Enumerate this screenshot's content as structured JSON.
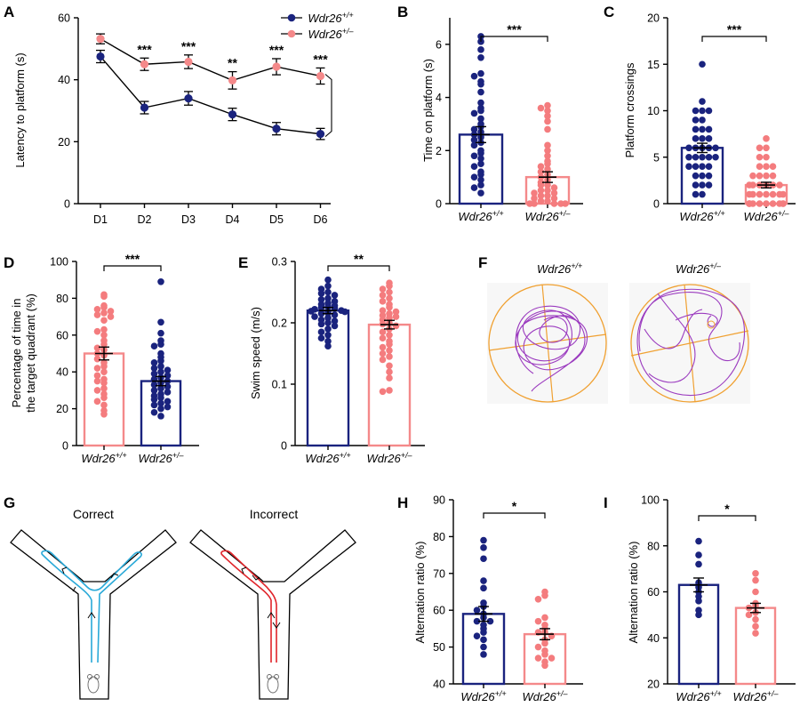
{
  "colors": {
    "wt": "#1a237e",
    "het": "#f4898a",
    "het_dot": "#f47c7e",
    "arena": "#f0a030",
    "path": "#9b3bbf",
    "correct_path": "#29a9d8",
    "incorrect_path": "#e0242a",
    "incorrect_text": "#e0242a"
  },
  "panels": {
    "A": {
      "label": "A",
      "chart_data": {
        "type": "line",
        "ylabel": "Latency to platform (s)",
        "xlabel": "",
        "categories": [
          "D1",
          "D2",
          "D3",
          "D4",
          "D5",
          "D6"
        ],
        "ylim": [
          0,
          60
        ],
        "yticks": [
          0,
          20,
          40,
          60
        ],
        "series": [
          {
            "name": "Wdr26+/+",
            "name_base": "Wdr26",
            "name_sup": "+/+",
            "values": [
              47.5,
              31,
              34,
              28.8,
              24.2,
              22.5
            ],
            "err": [
              2,
              2,
              2.2,
              2,
              2,
              1.8
            ]
          },
          {
            "name": "Wdr26+/–",
            "name_base": "Wdr26",
            "name_sup": "+/–",
            "values": [
              53.2,
              45,
              45.8,
              39.8,
              44.2,
              41.2
            ],
            "err": [
              1.6,
              2,
              2.2,
              2.8,
              2.6,
              2.6
            ]
          }
        ],
        "annotations": [
          "",
          "***",
          "***",
          "**",
          "***",
          "***"
        ],
        "bracket_annotation": "***",
        "legend": "top-right"
      }
    },
    "B": {
      "label": "B",
      "chart_data": {
        "type": "bar",
        "ylabel": "Time on platform (s)",
        "ylim": [
          0,
          7
        ],
        "yticks": [
          0,
          2,
          4,
          6
        ],
        "categories": [
          "Wdr26+/+",
          "Wdr26+/–"
        ],
        "cat_base": [
          "Wdr26",
          "Wdr26"
        ],
        "cat_sup": [
          "+/+",
          "+/–"
        ],
        "values": [
          2.6,
          1.0
        ],
        "err": [
          0.3,
          0.2
        ],
        "significance": "***",
        "points": [
          [
            6.3,
            6.1,
            5.8,
            5.5,
            4.9,
            4.8,
            4.6,
            4.5,
            4.2,
            3.8,
            3.6,
            3.5,
            3.4,
            3.2,
            3.0,
            2.9,
            2.8,
            2.7,
            2.6,
            2.5,
            2.4,
            2.3,
            2.2,
            2.0,
            1.9,
            1.8,
            1.7,
            1.5,
            1.4,
            1.2,
            1.1,
            1.0,
            0.9,
            0.7,
            0.6,
            0.4
          ],
          [
            3.7,
            3.6,
            3.5,
            3.3,
            3.1,
            2.8,
            2.2,
            2.0,
            1.8,
            1.6,
            1.5,
            1.4,
            1.3,
            1.2,
            1.1,
            1.0,
            0.9,
            0.8,
            0.7,
            0.7,
            0.6,
            0.5,
            0.5,
            0.4,
            0.4,
            0.3,
            0.3,
            0.2,
            0.2,
            0.1,
            0.1,
            0,
            0,
            0,
            0,
            0
          ]
        ]
      }
    },
    "C": {
      "label": "C",
      "chart_data": {
        "type": "bar",
        "ylabel": "Platform crossings",
        "ylim": [
          0,
          20
        ],
        "yticks": [
          0,
          5,
          10,
          15,
          20
        ],
        "categories": [
          "Wdr26+/+",
          "Wdr26+/–"
        ],
        "cat_base": [
          "Wdr26",
          "Wdr26"
        ],
        "cat_sup": [
          "+/+",
          "+/–"
        ],
        "values": [
          6.0,
          2.0
        ],
        "err": [
          0.5,
          0.3
        ],
        "significance": "***",
        "points": [
          [
            15,
            11,
            10,
            10,
            10,
            9,
            9,
            8,
            8,
            8,
            7,
            7,
            7,
            6,
            6,
            6,
            6,
            6,
            5,
            5,
            5,
            5,
            5,
            4,
            4,
            4,
            4,
            3,
            3,
            3,
            2,
            2,
            2,
            1,
            1
          ],
          [
            7,
            6,
            6,
            5,
            5,
            4,
            4,
            4,
            3,
            3,
            3,
            3,
            2,
            2,
            2,
            2,
            2,
            2,
            1,
            1,
            1,
            1,
            1,
            1,
            1,
            0,
            0,
            0,
            0,
            0,
            0,
            0,
            0,
            0,
            0
          ]
        ]
      }
    },
    "D": {
      "label": "D",
      "chart_data": {
        "type": "bar",
        "ylabel": [
          "Percentage of time in",
          "the target quadrant (%)"
        ],
        "ylim": [
          0,
          100
        ],
        "yticks": [
          0,
          20,
          40,
          60,
          80,
          100
        ],
        "categories": [
          "Wdr26+/+",
          "Wdr26+/–"
        ],
        "cat_base": [
          "Wdr26",
          "Wdr26"
        ],
        "cat_sup": [
          "+/+",
          "+/–"
        ],
        "values": [
          50,
          35
        ],
        "err": [
          3.5,
          2.5
        ],
        "significance": "***",
        "bar_colors": [
          "het",
          "wt"
        ],
        "points": [
          [
            82,
            81,
            76,
            75,
            74,
            73,
            72,
            71,
            70,
            68,
            63,
            62,
            60,
            57,
            55,
            53,
            52,
            50,
            49,
            47,
            45,
            43,
            42,
            40,
            38,
            36,
            35,
            34,
            31,
            30,
            28,
            26,
            24,
            22,
            19,
            17
          ],
          [
            89,
            67,
            61,
            57,
            55,
            54,
            50,
            48,
            46,
            45,
            43,
            42,
            41,
            40,
            39,
            38,
            37,
            36,
            35,
            34,
            33,
            32,
            31,
            30,
            29,
            28,
            27,
            26,
            25,
            24,
            23,
            22,
            21,
            20,
            18,
            16
          ]
        ]
      }
    },
    "E": {
      "label": "E",
      "chart_data": {
        "type": "bar",
        "ylabel": "Swim speed (m/s)",
        "ylim": [
          0,
          0.3
        ],
        "yticks": [
          0,
          0.1,
          0.2,
          0.3
        ],
        "ytick_labels": [
          "0",
          "0.1",
          "0.2",
          "0.3"
        ],
        "categories": [
          "Wdr26+/+",
          "Wdr26+/–"
        ],
        "cat_base": [
          "Wdr26",
          "Wdr26"
        ],
        "cat_sup": [
          "+/+",
          "+/–"
        ],
        "values": [
          0.22,
          0.197
        ],
        "err": [
          0.005,
          0.007
        ],
        "significance": "**",
        "points": [
          [
            0.27,
            0.26,
            0.255,
            0.25,
            0.248,
            0.245,
            0.24,
            0.238,
            0.235,
            0.232,
            0.23,
            0.228,
            0.226,
            0.225,
            0.224,
            0.222,
            0.22,
            0.219,
            0.218,
            0.216,
            0.215,
            0.213,
            0.21,
            0.208,
            0.205,
            0.203,
            0.2,
            0.198,
            0.195,
            0.19,
            0.185,
            0.18,
            0.175,
            0.17,
            0.162
          ],
          [
            0.265,
            0.26,
            0.255,
            0.25,
            0.245,
            0.24,
            0.235,
            0.23,
            0.225,
            0.22,
            0.218,
            0.215,
            0.212,
            0.21,
            0.208,
            0.205,
            0.2,
            0.198,
            0.195,
            0.19,
            0.185,
            0.18,
            0.175,
            0.17,
            0.165,
            0.16,
            0.155,
            0.15,
            0.145,
            0.14,
            0.13,
            0.12,
            0.11,
            0.09,
            0.088
          ]
        ]
      }
    },
    "F": {
      "label": "F",
      "titles": [
        {
          "base": "Wdr26",
          "sup": "+/+"
        },
        {
          "base": "Wdr26",
          "sup": "+/–"
        }
      ]
    },
    "G": {
      "label": "G",
      "correct_label": "Correct",
      "incorrect_label": "Incorrect"
    },
    "H": {
      "label": "H",
      "chart_data": {
        "type": "bar",
        "ylabel": "Alternation ratio  (%)",
        "ylim": [
          40,
          90
        ],
        "yticks": [
          40,
          50,
          60,
          70,
          80,
          90
        ],
        "categories": [
          "Wdr26+/+",
          "Wdr26+/–"
        ],
        "cat_base": [
          "Wdr26",
          "Wdr26"
        ],
        "cat_sup": [
          "+/+",
          "+/–"
        ],
        "values": [
          59,
          53.5
        ],
        "err": [
          2,
          1.5
        ],
        "significance": "*",
        "points": [
          [
            79,
            77,
            74,
            68,
            66,
            62,
            61,
            60,
            59,
            58,
            57,
            57,
            56,
            55,
            54,
            53,
            52,
            50,
            48
          ],
          [
            65,
            64,
            63,
            58,
            57,
            56,
            55,
            54,
            54,
            53,
            52,
            51,
            50,
            49,
            48,
            47,
            47,
            46,
            45
          ]
        ]
      }
    },
    "I": {
      "label": "I",
      "chart_data": {
        "type": "bar",
        "ylabel": "Alternation ratio  (%)",
        "ylim": [
          20,
          100
        ],
        "yticks": [
          20,
          40,
          60,
          80,
          100
        ],
        "categories": [
          "Wdr26+/+",
          "Wdr26+/–"
        ],
        "cat_base": [
          "Wdr26",
          "Wdr26"
        ],
        "cat_sup": [
          "+/+",
          "+/–"
        ],
        "values": [
          63,
          53
        ],
        "err": [
          3,
          2
        ],
        "significance": "*",
        "points": [
          [
            82,
            76,
            72,
            64,
            62,
            60,
            58,
            56,
            52,
            50
          ],
          [
            68,
            65,
            60,
            55,
            54,
            53,
            51,
            50,
            48,
            45,
            42
          ]
        ]
      }
    }
  }
}
